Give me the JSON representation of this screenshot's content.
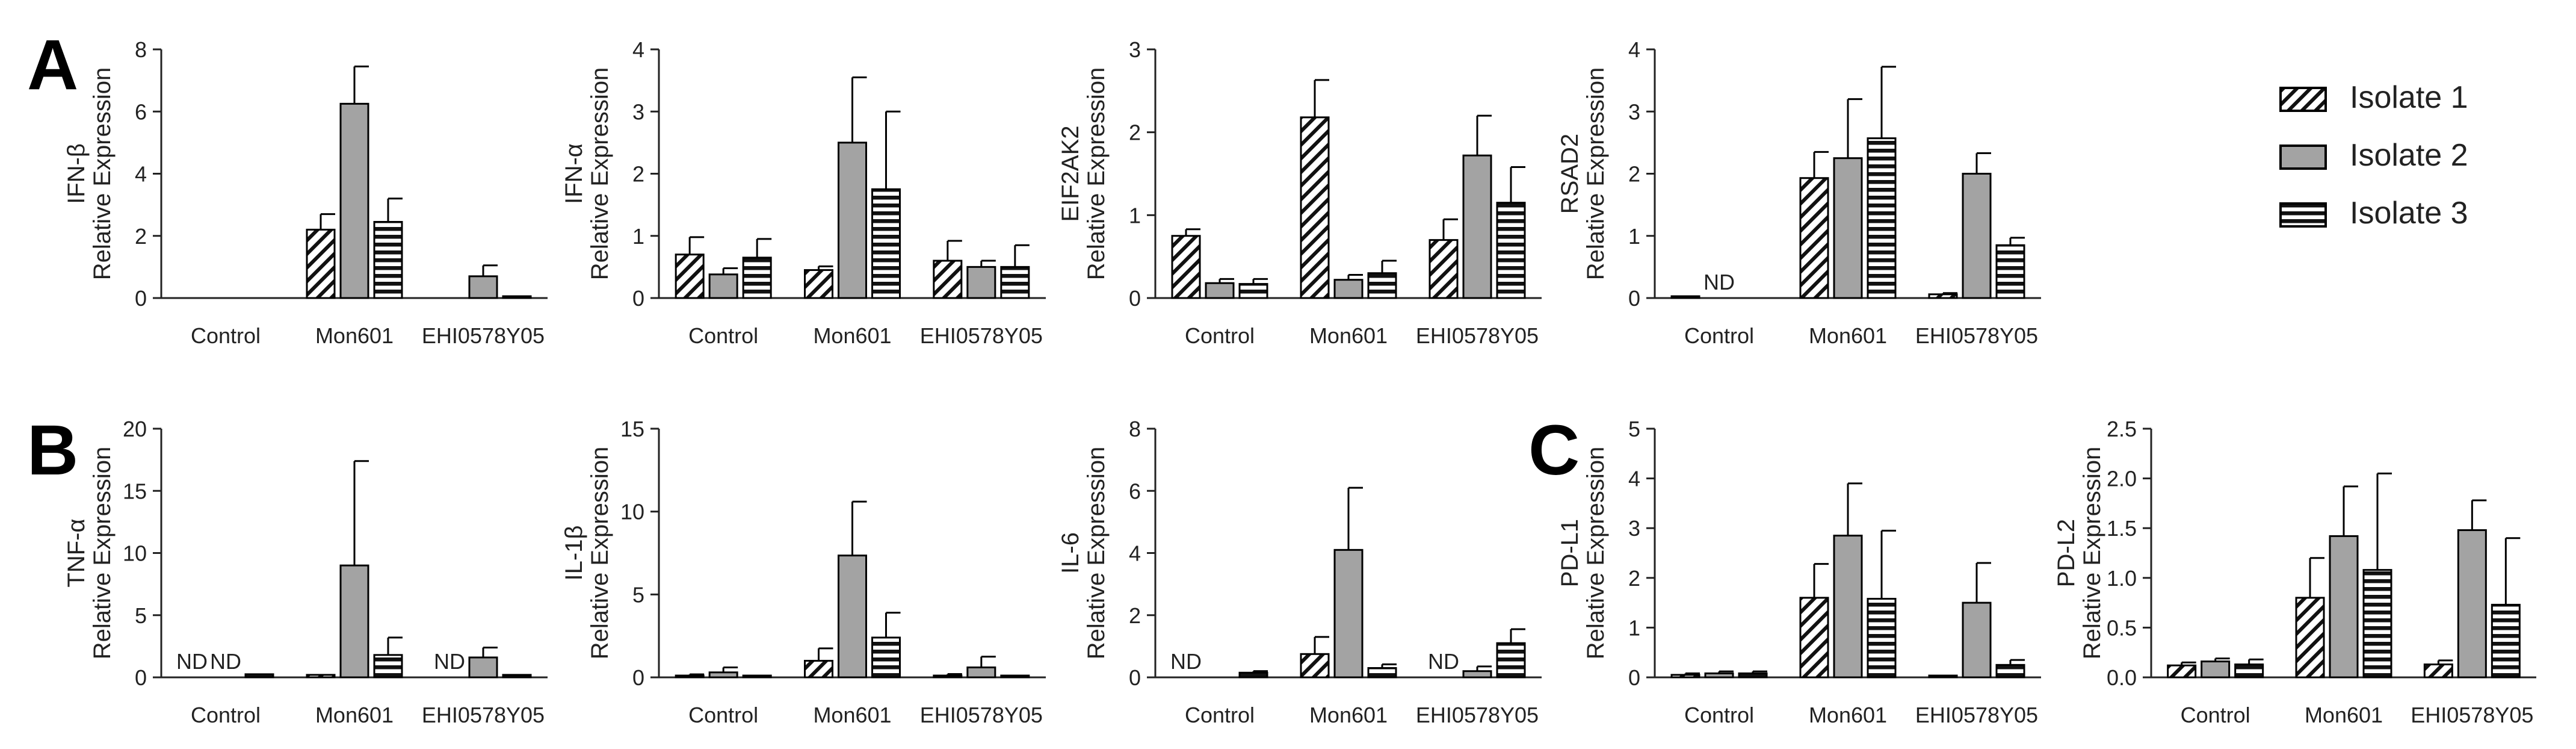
{
  "panel_letters": {
    "A": "A",
    "B": "B",
    "C": "C"
  },
  "legend": {
    "items": [
      {
        "name": "Isolate 1",
        "pattern": "diagonal"
      },
      {
        "name": "Isolate 2",
        "pattern": "gray"
      },
      {
        "name": "Isolate 3",
        "pattern": "horizontal"
      }
    ]
  },
  "colors": {
    "bar_gray": "#a3a3a3",
    "stroke": "#000000",
    "axis": "#222222",
    "text": "#222222"
  },
  "chart_data": [
    {
      "id": "ifnb",
      "type": "bar",
      "ylabel_top": "IFN-β",
      "ylabel_bottom": "Relative Expression",
      "categories": [
        "Control",
        "Mon601",
        "EHI0578Y05"
      ],
      "ylim": [
        0,
        8
      ],
      "yticks": [
        "0",
        "2",
        "4",
        "6",
        "8"
      ],
      "series": [
        {
          "name": "Isolate 1",
          "values": [
            0,
            2.2,
            0
          ],
          "errors": [
            0,
            0.5,
            0
          ]
        },
        {
          "name": "Isolate 2",
          "values": [
            0,
            6.25,
            0.7
          ],
          "errors": [
            0,
            1.2,
            0.35
          ]
        },
        {
          "name": "Isolate 3",
          "values": [
            0,
            2.45,
            0.05
          ],
          "errors": [
            0,
            0.75,
            0
          ]
        }
      ],
      "annotations": []
    },
    {
      "id": "ifna",
      "type": "bar",
      "ylabel_top": "IFN-α",
      "ylabel_bottom": "Relative Expression",
      "categories": [
        "Control",
        "Mon601",
        "EHI0578Y05"
      ],
      "ylim": [
        0,
        4
      ],
      "yticks": [
        "0",
        "1",
        "2",
        "3",
        "4"
      ],
      "series": [
        {
          "name": "Isolate 1",
          "values": [
            0.7,
            0.45,
            0.6
          ],
          "errors": [
            0.28,
            0.06,
            0.32
          ]
        },
        {
          "name": "Isolate 2",
          "values": [
            0.38,
            2.5,
            0.5
          ],
          "errors": [
            0.1,
            1.05,
            0.1
          ]
        },
        {
          "name": "Isolate 3",
          "values": [
            0.65,
            1.75,
            0.5
          ],
          "errors": [
            0.3,
            1.25,
            0.35
          ]
        }
      ],
      "annotations": []
    },
    {
      "id": "eif2ak2",
      "type": "bar",
      "ylabel_top": "EIF2AK2",
      "ylabel_bottom": "Relative Expression",
      "categories": [
        "Control",
        "Mon601",
        "EHI0578Y05"
      ],
      "ylim": [
        0,
        3
      ],
      "yticks": [
        "0",
        "1",
        "2",
        "3"
      ],
      "series": [
        {
          "name": "Isolate 1",
          "values": [
            0.75,
            2.18,
            0.7
          ],
          "errors": [
            0.08,
            0.45,
            0.25
          ]
        },
        {
          "name": "Isolate 2",
          "values": [
            0.18,
            0.22,
            1.72
          ],
          "errors": [
            0.05,
            0.06,
            0.48
          ]
        },
        {
          "name": "Isolate 3",
          "values": [
            0.17,
            0.3,
            1.15
          ],
          "errors": [
            0.06,
            0.15,
            0.43
          ]
        }
      ],
      "annotations": []
    },
    {
      "id": "rsad2",
      "type": "bar",
      "ylabel_top": "RSAD2",
      "ylabel_bottom": "Relative Expression",
      "categories": [
        "Control",
        "Mon601",
        "EHI0578Y05"
      ],
      "ylim": [
        0,
        4
      ],
      "yticks": [
        "0",
        "1",
        "2",
        "3",
        "4"
      ],
      "series": [
        {
          "name": "Isolate 1",
          "values": [
            0.02,
            1.93,
            0.06
          ],
          "errors": [
            0,
            0.42,
            0.02
          ]
        },
        {
          "name": "Isolate 2",
          "values": [
            0,
            2.25,
            2.0
          ],
          "errors": [
            0,
            0.95,
            0.33
          ]
        },
        {
          "name": "Isolate 3",
          "values": [
            0,
            2.57,
            0.85
          ],
          "errors": [
            0,
            1.15,
            0.12
          ]
        }
      ],
      "annotations": [
        {
          "text": "ND",
          "category": 0,
          "series": 1
        }
      ]
    },
    {
      "id": "tnfa",
      "type": "bar",
      "ylabel_top": "TNF-α",
      "ylabel_bottom": "Relative Expression",
      "categories": [
        "Control",
        "Mon601",
        "EHI0578Y05"
      ],
      "ylim": [
        0,
        20
      ],
      "yticks": [
        "0",
        "5",
        "10",
        "15",
        "20"
      ],
      "series": [
        {
          "name": "Isolate 1",
          "values": [
            0,
            0.2,
            0
          ],
          "errors": [
            0,
            0,
            0
          ]
        },
        {
          "name": "Isolate 2",
          "values": [
            0,
            9.0,
            1.6
          ],
          "errors": [
            0,
            8.4,
            0.8
          ]
        },
        {
          "name": "Isolate 3",
          "values": [
            0.25,
            1.8,
            0.2
          ],
          "errors": [
            0,
            1.4,
            0
          ]
        }
      ],
      "annotations": [
        {
          "text": "ND",
          "category": 0,
          "series": 0
        },
        {
          "text": "ND",
          "category": 0,
          "series": 1
        },
        {
          "text": "ND",
          "category": 2,
          "series": 0
        }
      ]
    },
    {
      "id": "il1b",
      "type": "bar",
      "ylabel_top": "IL-1β",
      "ylabel_bottom": "Relative Expression",
      "categories": [
        "Control",
        "Mon601",
        "EHI0578Y05"
      ],
      "ylim": [
        0,
        15
      ],
      "yticks": [
        "0",
        "5",
        "10",
        "15"
      ],
      "series": [
        {
          "name": "Isolate 1",
          "values": [
            0.1,
            1.0,
            0.1
          ],
          "errors": [
            0.08,
            0.75,
            0.1
          ]
        },
        {
          "name": "Isolate 2",
          "values": [
            0.3,
            7.35,
            0.6
          ],
          "errors": [
            0.3,
            3.25,
            0.65
          ]
        },
        {
          "name": "Isolate 3",
          "values": [
            0.05,
            2.4,
            0.1
          ],
          "errors": [
            0,
            1.5,
            0
          ]
        }
      ],
      "annotations": []
    },
    {
      "id": "il6",
      "type": "bar",
      "ylabel_top": "IL-6",
      "ylabel_bottom": "Relative Expression",
      "categories": [
        "Control",
        "Mon601",
        "EHI0578Y05"
      ],
      "ylim": [
        0,
        8
      ],
      "yticks": [
        "0",
        "2",
        "4",
        "6",
        "8"
      ],
      "series": [
        {
          "name": "Isolate 1",
          "values": [
            0,
            0.75,
            0
          ],
          "errors": [
            0,
            0.55,
            0
          ]
        },
        {
          "name": "Isolate 2",
          "values": [
            0,
            4.1,
            0.2
          ],
          "errors": [
            0,
            2.0,
            0.15
          ]
        },
        {
          "name": "Isolate 3",
          "values": [
            0.15,
            0.3,
            1.1
          ],
          "errors": [
            0.05,
            0.12,
            0.45
          ]
        }
      ],
      "annotations": [
        {
          "text": "ND",
          "category": 0,
          "series": 0
        },
        {
          "text": "ND",
          "category": 2,
          "series": 0
        }
      ]
    },
    {
      "id": "pdl1",
      "type": "bar",
      "ylabel_top": "PD-L1",
      "ylabel_bottom": "Relative Expression",
      "categories": [
        "Control",
        "Mon601",
        "EHI0578Y05"
      ],
      "ylim": [
        0,
        5
      ],
      "yticks": [
        "0",
        "1",
        "2",
        "3",
        "4",
        "5"
      ],
      "series": [
        {
          "name": "Isolate 1",
          "values": [
            0.05,
            1.6,
            0.02
          ],
          "errors": [
            0.03,
            0.68,
            0
          ]
        },
        {
          "name": "Isolate 2",
          "values": [
            0.08,
            2.85,
            1.5
          ],
          "errors": [
            0.04,
            1.05,
            0.8
          ]
        },
        {
          "name": "Isolate 3",
          "values": [
            0.08,
            1.58,
            0.25
          ],
          "errors": [
            0.04,
            1.37,
            0.1
          ]
        }
      ],
      "annotations": []
    },
    {
      "id": "pdl2",
      "type": "bar",
      "ylabel_top": "PD-L2",
      "ylabel_bottom": "Relative Expression",
      "categories": [
        "Control",
        "Mon601",
        "EHI0578Y05"
      ],
      "ylim": [
        0,
        2.5
      ],
      "yticks": [
        "0.0",
        "0.5",
        "1.0",
        "1.5",
        "2.0",
        "2.5"
      ],
      "series": [
        {
          "name": "Isolate 1",
          "values": [
            0.12,
            0.8,
            0.13
          ],
          "errors": [
            0.03,
            0.4,
            0.04
          ]
        },
        {
          "name": "Isolate 2",
          "values": [
            0.16,
            1.42,
            1.48
          ],
          "errors": [
            0.03,
            0.5,
            0.3
          ]
        },
        {
          "name": "Isolate 3",
          "values": [
            0.13,
            1.08,
            0.73
          ],
          "errors": [
            0.05,
            0.97,
            0.67
          ]
        }
      ],
      "annotations": []
    }
  ]
}
